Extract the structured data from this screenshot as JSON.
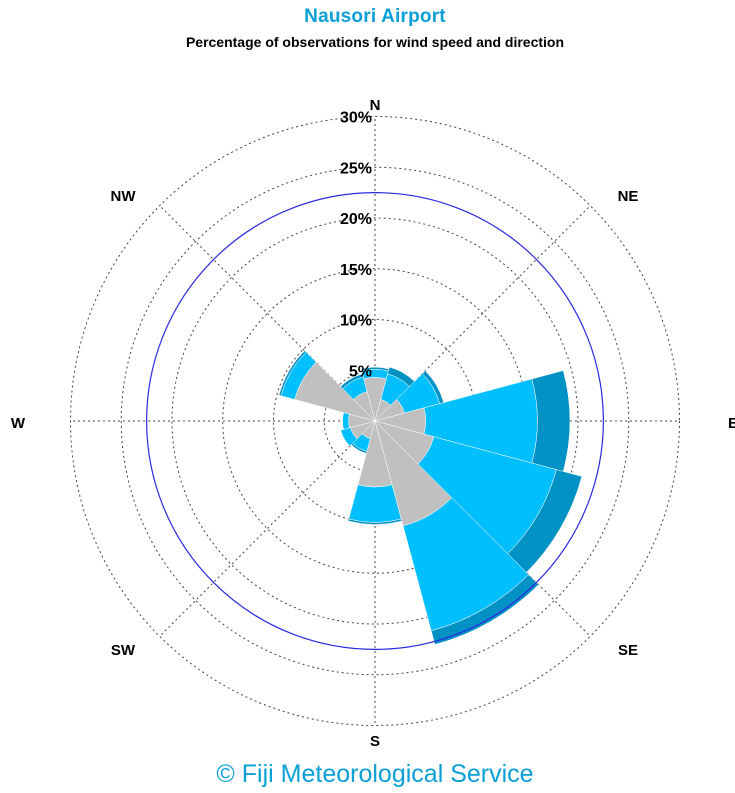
{
  "header": {
    "title": "Nausori Airport",
    "subtitle": "Percentage of observations for wind speed and direction"
  },
  "footer": {
    "copyright": "© Fiji Meteorological Service"
  },
  "colors": {
    "title": "#0a9fd6",
    "grid": "#444444",
    "reference_circle": "#2a2ae0",
    "speed_bands": [
      "#c0c0c0",
      "#00bfff",
      "#0092c4",
      "#4a8fb8"
    ]
  },
  "chart_data": {
    "type": "wind_rose",
    "directions": [
      "N",
      "NE",
      "E",
      "SE",
      "S",
      "SW",
      "W",
      "NW"
    ],
    "ring_labels": [
      "5%",
      "10%",
      "15%",
      "20%",
      "25%",
      "30%"
    ],
    "rmax": 30,
    "reference_circle": 22.5,
    "sectors": [
      {
        "direction": "N",
        "angle": 0,
        "width": 30,
        "bands": [
          4.3,
          0.8,
          0.2
        ]
      },
      {
        "direction": "NNE",
        "angle": 30,
        "width": 30,
        "bands": [
          2.2,
          2.6,
          0.7
        ]
      },
      {
        "direction": "ENE",
        "angle": 60,
        "width": 30,
        "bands": [
          3.0,
          3.6,
          0.4
        ]
      },
      {
        "direction": "E",
        "angle": 90,
        "width": 30,
        "bands": [
          5.0,
          11.0,
          3.2
        ]
      },
      {
        "direction": "ESE",
        "angle": 120,
        "width": 30,
        "bands": [
          6.0,
          12.5,
          2.6
        ]
      },
      {
        "direction": "SSE",
        "angle": 150,
        "width": 30,
        "bands": [
          10.7,
          10.7,
          1.4
        ]
      },
      {
        "direction": "S",
        "angle": 180,
        "width": 30,
        "bands": [
          6.5,
          3.5,
          0.2
        ]
      },
      {
        "direction": "SSW",
        "angle": 210,
        "width": 30,
        "bands": [
          1.8,
          1.3,
          0.2
        ]
      },
      {
        "direction": "WSW",
        "angle": 240,
        "width": 30,
        "bands": [
          2.5,
          1.0,
          0.0
        ]
      },
      {
        "direction": "W",
        "angle": 270,
        "width": 30,
        "bands": [
          2.6,
          0.6,
          0.0
        ]
      },
      {
        "direction": "WNW",
        "angle": 300,
        "width": 30,
        "bands": [
          8.2,
          1.4,
          0.2
        ]
      },
      {
        "direction": "NNW",
        "angle": 330,
        "width": 30,
        "bands": [
          3.0,
          1.5,
          0.3
        ]
      }
    ]
  }
}
